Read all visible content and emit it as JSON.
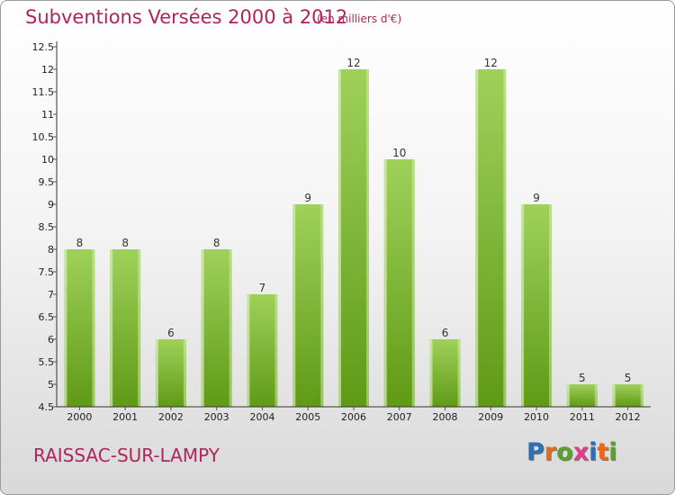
{
  "header": {
    "title": "Subventions Versées 2000 à 2012",
    "subtitle": "(en milliers d'€)"
  },
  "commune": "RAISSAC-SUR-LAMPY",
  "logo": {
    "text": "Proxiti",
    "letter_colors": [
      "#2e6eb5",
      "#e86a1a",
      "#5aa02c",
      "#e03c8a",
      "#2e6eb5",
      "#e86a1a",
      "#5aa02c"
    ]
  },
  "colors": {
    "title": "#b0245c",
    "bar_top": "#9fd15a",
    "bar_bottom": "#5f9a16",
    "bar_edge": "#d8eeb8",
    "axis": "#333333",
    "grid_tick": "#555555"
  },
  "chart_data": {
    "type": "bar",
    "categories": [
      "2000",
      "2001",
      "2002",
      "2003",
      "2004",
      "2005",
      "2006",
      "2007",
      "2008",
      "2009",
      "2010",
      "2011",
      "2012"
    ],
    "values": [
      8,
      8,
      6,
      8,
      7,
      9,
      12,
      10,
      6,
      12,
      9,
      5,
      5
    ],
    "data_labels": [
      "8",
      "8",
      "6",
      "8",
      "7",
      "9",
      "12",
      "10",
      "6",
      "12",
      "9",
      "5",
      "5"
    ],
    "title": "Subventions Versées 2000 à 2012",
    "subtitle": "(en milliers d'€)",
    "xlabel": "",
    "ylabel": "",
    "ylim": [
      4.5,
      12.5
    ],
    "yticks": [
      4.5,
      5,
      5.5,
      6,
      6.5,
      7,
      7.5,
      8,
      8.5,
      9,
      9.5,
      10,
      10.5,
      11,
      11.5,
      12,
      12.5
    ],
    "ytick_labels": [
      "4.5",
      "5",
      "5.5",
      "6",
      "6.5",
      "7",
      "7.5",
      "8",
      "8.5",
      "9",
      "9.5",
      "10",
      "10.5",
      "11",
      "11.5",
      "12",
      "12.5"
    ],
    "grid": false,
    "legend": "none"
  }
}
